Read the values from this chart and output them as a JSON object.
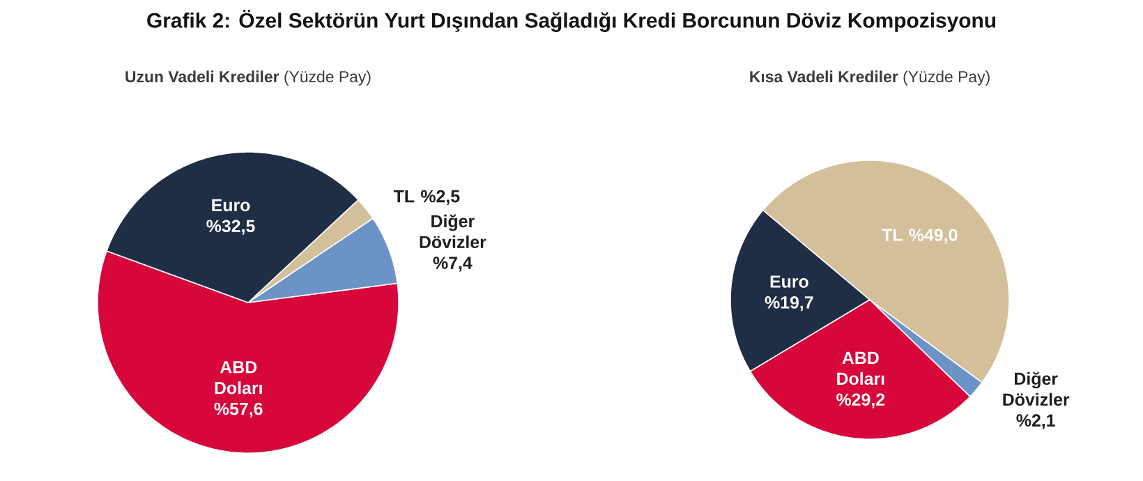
{
  "chart_data": [
    {
      "type": "pie",
      "title": "Grafik 2: Özel Sektörün Yurt Dışından Sağladığı Kredi Borcunun Döviz Kompozisyonu",
      "subtitle": "**Uzun Vadeli Krediler** (Yüzde Pay)",
      "categories": [
        "ABD Doları",
        "Diğer Dövizler",
        "TL",
        "Euro"
      ],
      "values": [
        57.6,
        7.4,
        2.5,
        32.5
      ],
      "value_labels": [
        "%57,6",
        "%7,4",
        "%2,5",
        "%32,5"
      ],
      "colors": [
        "#d7063b",
        "#6b93c6",
        "#d4bf9b",
        "#1f2d45"
      ]
    },
    {
      "type": "pie",
      "subtitle": "**Kısa Vadeli Krediler** (Yüzde Pay)",
      "categories": [
        "Euro",
        "ABD Doları",
        "Diğer Dövizler",
        "TL"
      ],
      "values": [
        19.7,
        29.2,
        2.1,
        49.0
      ],
      "value_labels": [
        "%19,7",
        "%29,2",
        "%2,1",
        "%49,0"
      ],
      "colors": [
        "#1f2d45",
        "#d7063b",
        "#6b93c6",
        "#d4bf9b"
      ]
    }
  ]
}
